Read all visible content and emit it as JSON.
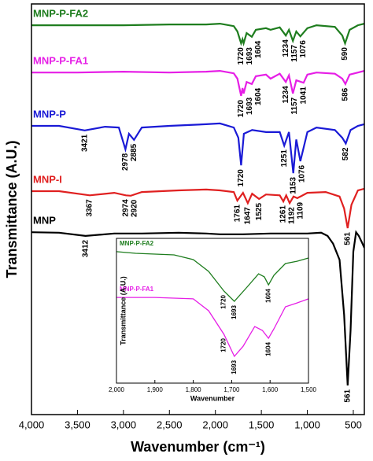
{
  "chart_data": [
    {
      "type": "line",
      "xlabel": "Wavenumber (cm⁻¹)",
      "ylabel": "Transmittance (A.U.)",
      "xlim": [
        4000,
        380
      ],
      "ylim": [
        0,
        100
      ],
      "xticks": [
        {
          "value": 4000,
          "label": "4,000"
        },
        {
          "value": 3500,
          "label": "3,500"
        },
        {
          "value": 3000,
          "label": "3,000"
        },
        {
          "value": 2500,
          "label": "2,500"
        },
        {
          "value": 2000,
          "label": "2,000"
        },
        {
          "value": 1500,
          "label": "1,500"
        },
        {
          "value": 1000,
          "label": "1,000"
        },
        500
      ],
      "series": [
        {
          "name": "MNP-P-FA2",
          "color": "#1e7d1e",
          "x": [
            4000,
            3500,
            3000,
            2500,
            2100,
            1950,
            1800,
            1760,
            1720,
            1705,
            1693,
            1660,
            1604,
            1560,
            1450,
            1400,
            1300,
            1234,
            1200,
            1157,
            1120,
            1076,
            1000,
            900,
            700,
            620,
            590,
            540,
            450,
            380
          ],
          "values": [
            94.8,
            94.8,
            94.8,
            95.0,
            95.0,
            95.2,
            94.6,
            93.3,
            90.4,
            91.4,
            90.4,
            92.9,
            92.0,
            93.7,
            94.1,
            93.7,
            94.3,
            92.3,
            93.7,
            91.0,
            93.3,
            92.1,
            94.1,
            94.8,
            94.4,
            92.3,
            90.4,
            93.7,
            94.8,
            95.2
          ],
          "peaks": [
            1720,
            1693,
            1604,
            1234,
            1157,
            1076,
            590
          ]
        },
        {
          "name": "MNP-P-FA1",
          "color": "#e61ee6",
          "x": [
            4000,
            3500,
            3000,
            2500,
            2100,
            1950,
            1800,
            1760,
            1720,
            1705,
            1693,
            1660,
            1604,
            1560,
            1450,
            1400,
            1300,
            1234,
            1200,
            1157,
            1120,
            1041,
            1000,
            900,
            700,
            620,
            586,
            540,
            450,
            380
          ],
          "values": [
            83.3,
            83.3,
            83.5,
            83.3,
            83.5,
            83.7,
            83.1,
            81.8,
            77.6,
            79.5,
            78.2,
            81.0,
            80.5,
            82.4,
            82.8,
            81.8,
            83.0,
            81.0,
            82.6,
            78.2,
            81.4,
            80.8,
            82.8,
            83.3,
            83.0,
            81.8,
            80.5,
            82.8,
            83.3,
            83.7
          ],
          "peaks": [
            1720,
            1693,
            1604,
            1234,
            1157,
            1041,
            586
          ]
        },
        {
          "name": "MNP-P",
          "color": "#1a1ad6",
          "x": [
            4000,
            3700,
            3421,
            3200,
            3050,
            2978,
            2940,
            2885,
            2800,
            2500,
            2100,
            1950,
            1800,
            1750,
            1720,
            1690,
            1600,
            1450,
            1300,
            1251,
            1200,
            1153,
            1120,
            1076,
            1000,
            900,
            700,
            620,
            582,
            530,
            450,
            380
          ],
          "values": [
            70.3,
            70.3,
            69.2,
            70.1,
            69.9,
            64.6,
            68.4,
            66.9,
            69.9,
            70.3,
            70.7,
            70.9,
            69.9,
            67.4,
            60.7,
            68.4,
            69.3,
            68.8,
            68.8,
            65.5,
            68.8,
            58.8,
            67.0,
            61.7,
            68.8,
            69.9,
            69.3,
            67.4,
            66.0,
            69.3,
            70.3,
            70.7
          ],
          "peaks": [
            3421,
            2978,
            2885,
            1720,
            1251,
            1153,
            1076,
            582
          ]
        },
        {
          "name": "MNP-I",
          "color": "#e02020",
          "x": [
            4000,
            3700,
            3367,
            3100,
            2974,
            2920,
            2800,
            2400,
            2100,
            1950,
            1800,
            1761,
            1700,
            1647,
            1600,
            1525,
            1450,
            1300,
            1261,
            1230,
            1192,
            1150,
            1109,
            1000,
            800,
            650,
            600,
            561,
            520,
            450,
            380
          ],
          "values": [
            54.4,
            54.4,
            53.4,
            54.0,
            53.4,
            53.3,
            54.2,
            54.6,
            54.8,
            54.6,
            54.2,
            52.1,
            54.0,
            51.5,
            53.8,
            52.5,
            53.6,
            53.4,
            51.9,
            53.4,
            51.5,
            53.1,
            52.7,
            54.0,
            54.2,
            53.1,
            50.2,
            45.4,
            51.1,
            54.6,
            55.0
          ],
          "peaks": [
            3367,
            2974,
            2920,
            1761,
            1647,
            1525,
            1261,
            1192,
            1109,
            561
          ]
        },
        {
          "name": "MNP",
          "color": "#000000",
          "x": [
            4000,
            3700,
            3412,
            3100,
            2800,
            2400,
            2100,
            1950,
            1700,
            1400,
            1000,
            850,
            780,
            720,
            650,
            600,
            561,
            530,
            500,
            470,
            440,
            400,
            380
          ],
          "values": [
            44.4,
            44.3,
            43.5,
            44.1,
            44.1,
            44.3,
            44.1,
            43.9,
            43.9,
            44.1,
            44.1,
            44.3,
            43.5,
            41.6,
            37.7,
            24.3,
            7.1,
            20.5,
            39.7,
            44.4,
            43.5,
            41.6,
            40.6
          ],
          "peaks": [
            3412,
            561
          ]
        }
      ]
    },
    {
      "type": "line",
      "xlabel": "Wavenumber",
      "ylabel": "Transmittance (A.U.)",
      "xlim": [
        2000,
        1500
      ],
      "ylim": [
        0,
        100
      ],
      "xticks": [
        {
          "value": 2000,
          "label": "2,000"
        },
        {
          "value": 1900,
          "label": "1,900"
        },
        {
          "value": 1800,
          "label": "1,800"
        },
        {
          "value": 1700,
          "label": "1,700"
        },
        {
          "value": 1600,
          "label": "1,600"
        },
        {
          "value": 1500,
          "label": "1,500"
        }
      ],
      "series": [
        {
          "name": "MNP-P-FA2",
          "color": "#1e7d1e",
          "x": [
            2000,
            1950,
            1850,
            1800,
            1760,
            1720,
            1693,
            1660,
            1630,
            1615,
            1604,
            1590,
            1560,
            1530,
            1500
          ],
          "values": [
            90.8,
            89.7,
            88.6,
            85.3,
            77.2,
            63.6,
            56.5,
            66.3,
            75.5,
            73.4,
            67.9,
            74.5,
            82.6,
            84.2,
            86.4
          ],
          "peaks": [
            1720,
            1693,
            1604
          ]
        },
        {
          "name": "MNP-P-FA1",
          "color": "#e61ee6",
          "x": [
            2000,
            1900,
            1800,
            1760,
            1720,
            1693,
            1670,
            1640,
            1620,
            1604,
            1590,
            1560,
            1530,
            1500
          ],
          "values": [
            59.2,
            59.2,
            58.2,
            50.0,
            33.7,
            18.5,
            25.5,
            39.1,
            36.4,
            31.0,
            37.5,
            52.7,
            55.4,
            58.2
          ],
          "peaks": [
            1720,
            1693,
            1604
          ]
        }
      ]
    }
  ]
}
